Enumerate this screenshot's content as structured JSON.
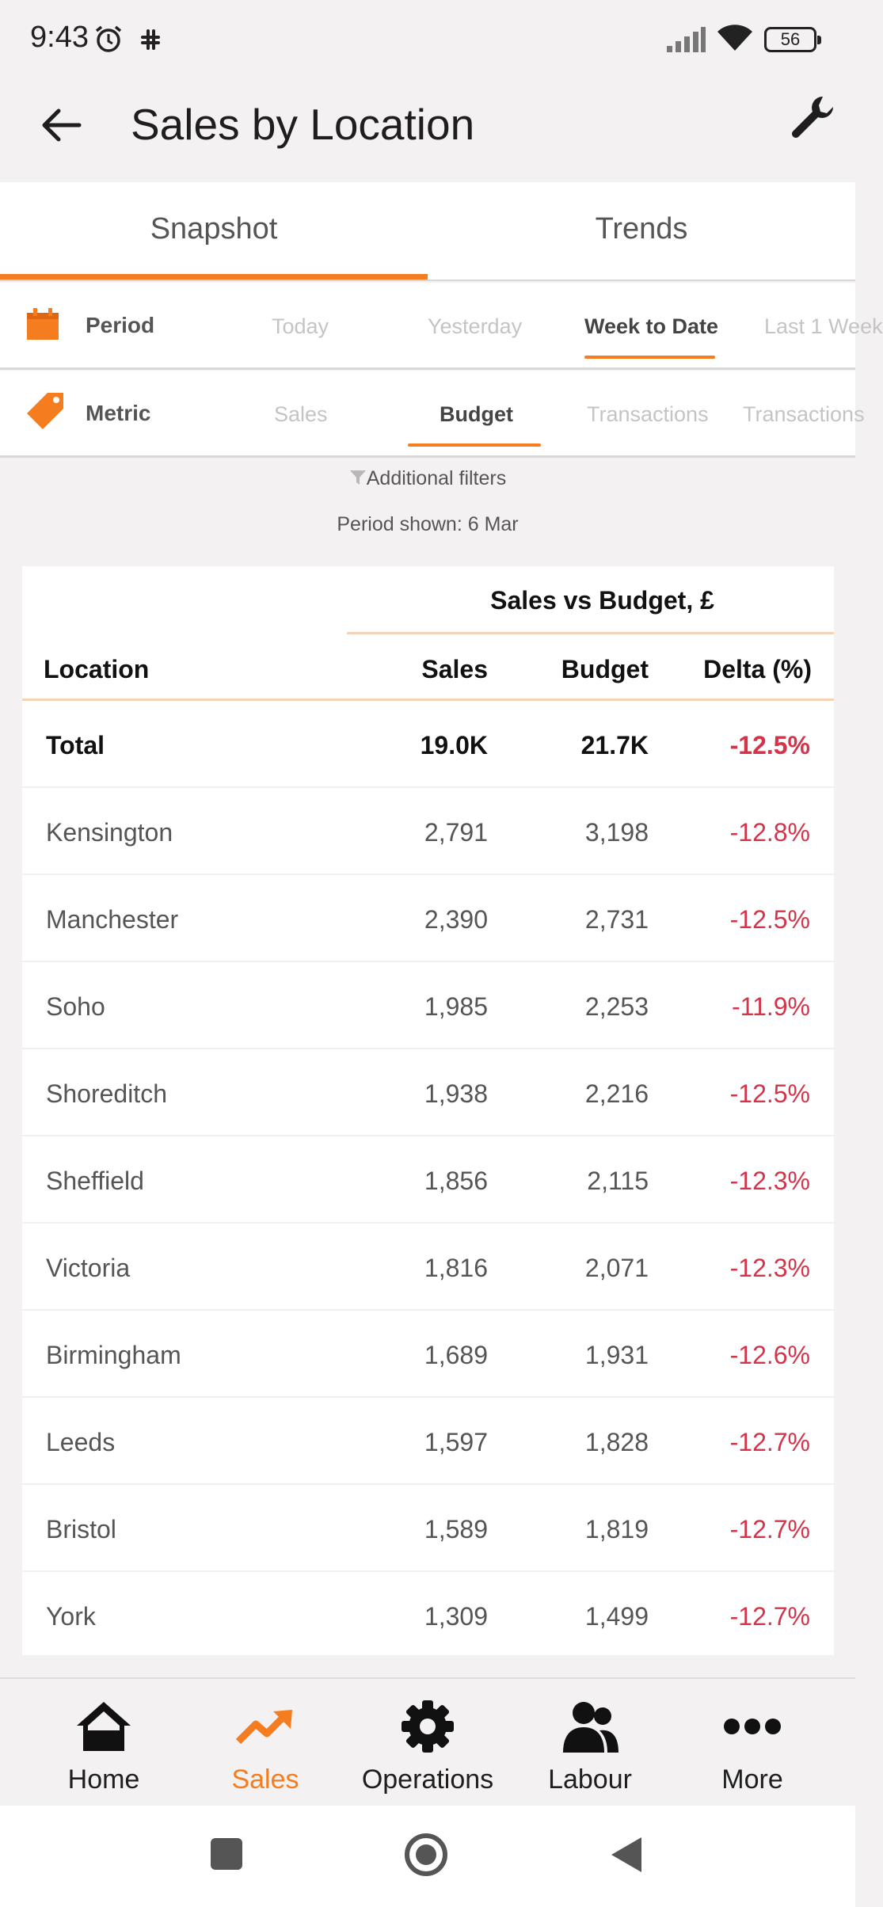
{
  "status_bar": {
    "time": "9:43",
    "battery": "56"
  },
  "header": {
    "title": "Sales by Location"
  },
  "tabs": [
    {
      "label": "Snapshot"
    },
    {
      "label": "Trends"
    }
  ],
  "period": {
    "label": "Period",
    "options": [
      "Today",
      "Yesterday",
      "Week to Date",
      "Last 1 Week"
    ],
    "selected": "Week to Date"
  },
  "metric": {
    "label": "Metric",
    "options": [
      "Sales",
      "Budget",
      "Transactions",
      "Transactions"
    ],
    "selected": "Budget"
  },
  "filters": {
    "additional": "Additional filters",
    "period_shown": "Period shown: 6 Mar"
  },
  "table": {
    "group_title": "Sales vs Budget, £",
    "columns": {
      "location": "Location",
      "sales": "Sales",
      "budget": "Budget",
      "delta": "Delta (%)"
    },
    "total": {
      "location": "Total",
      "sales": "19.0K",
      "budget": "21.7K",
      "delta": "-12.5%"
    },
    "rows": [
      {
        "location": "Kensington",
        "sales": "2,791",
        "budget": "3,198",
        "delta": "-12.8%"
      },
      {
        "location": "Manchester",
        "sales": "2,390",
        "budget": "2,731",
        "delta": "-12.5%"
      },
      {
        "location": "Soho",
        "sales": "1,985",
        "budget": "2,253",
        "delta": "-11.9%"
      },
      {
        "location": "Shoreditch",
        "sales": "1,938",
        "budget": "2,216",
        "delta": "-12.5%"
      },
      {
        "location": "Sheffield",
        "sales": "1,856",
        "budget": "2,115",
        "delta": "-12.3%"
      },
      {
        "location": "Victoria",
        "sales": "1,816",
        "budget": "2,071",
        "delta": "-12.3%"
      },
      {
        "location": "Birmingham",
        "sales": "1,689",
        "budget": "1,931",
        "delta": "-12.6%"
      },
      {
        "location": "Leeds",
        "sales": "1,597",
        "budget": "1,828",
        "delta": "-12.7%"
      },
      {
        "location": "Bristol",
        "sales": "1,589",
        "budget": "1,819",
        "delta": "-12.7%"
      },
      {
        "location": "York",
        "sales": "1,309",
        "budget": "1,499",
        "delta": "-12.7%"
      }
    ]
  },
  "bottom_nav": [
    {
      "label": "Home",
      "icon": "home-icon"
    },
    {
      "label": "Sales",
      "icon": "trending-up-icon",
      "active": true
    },
    {
      "label": "Operations",
      "icon": "gear-icon"
    },
    {
      "label": "Labour",
      "icon": "people-icon"
    },
    {
      "label": "More",
      "icon": "more-icon"
    }
  ],
  "colors": {
    "accent": "#f57c1f",
    "negative": "#d3344a",
    "background": "#f4f1f2"
  }
}
